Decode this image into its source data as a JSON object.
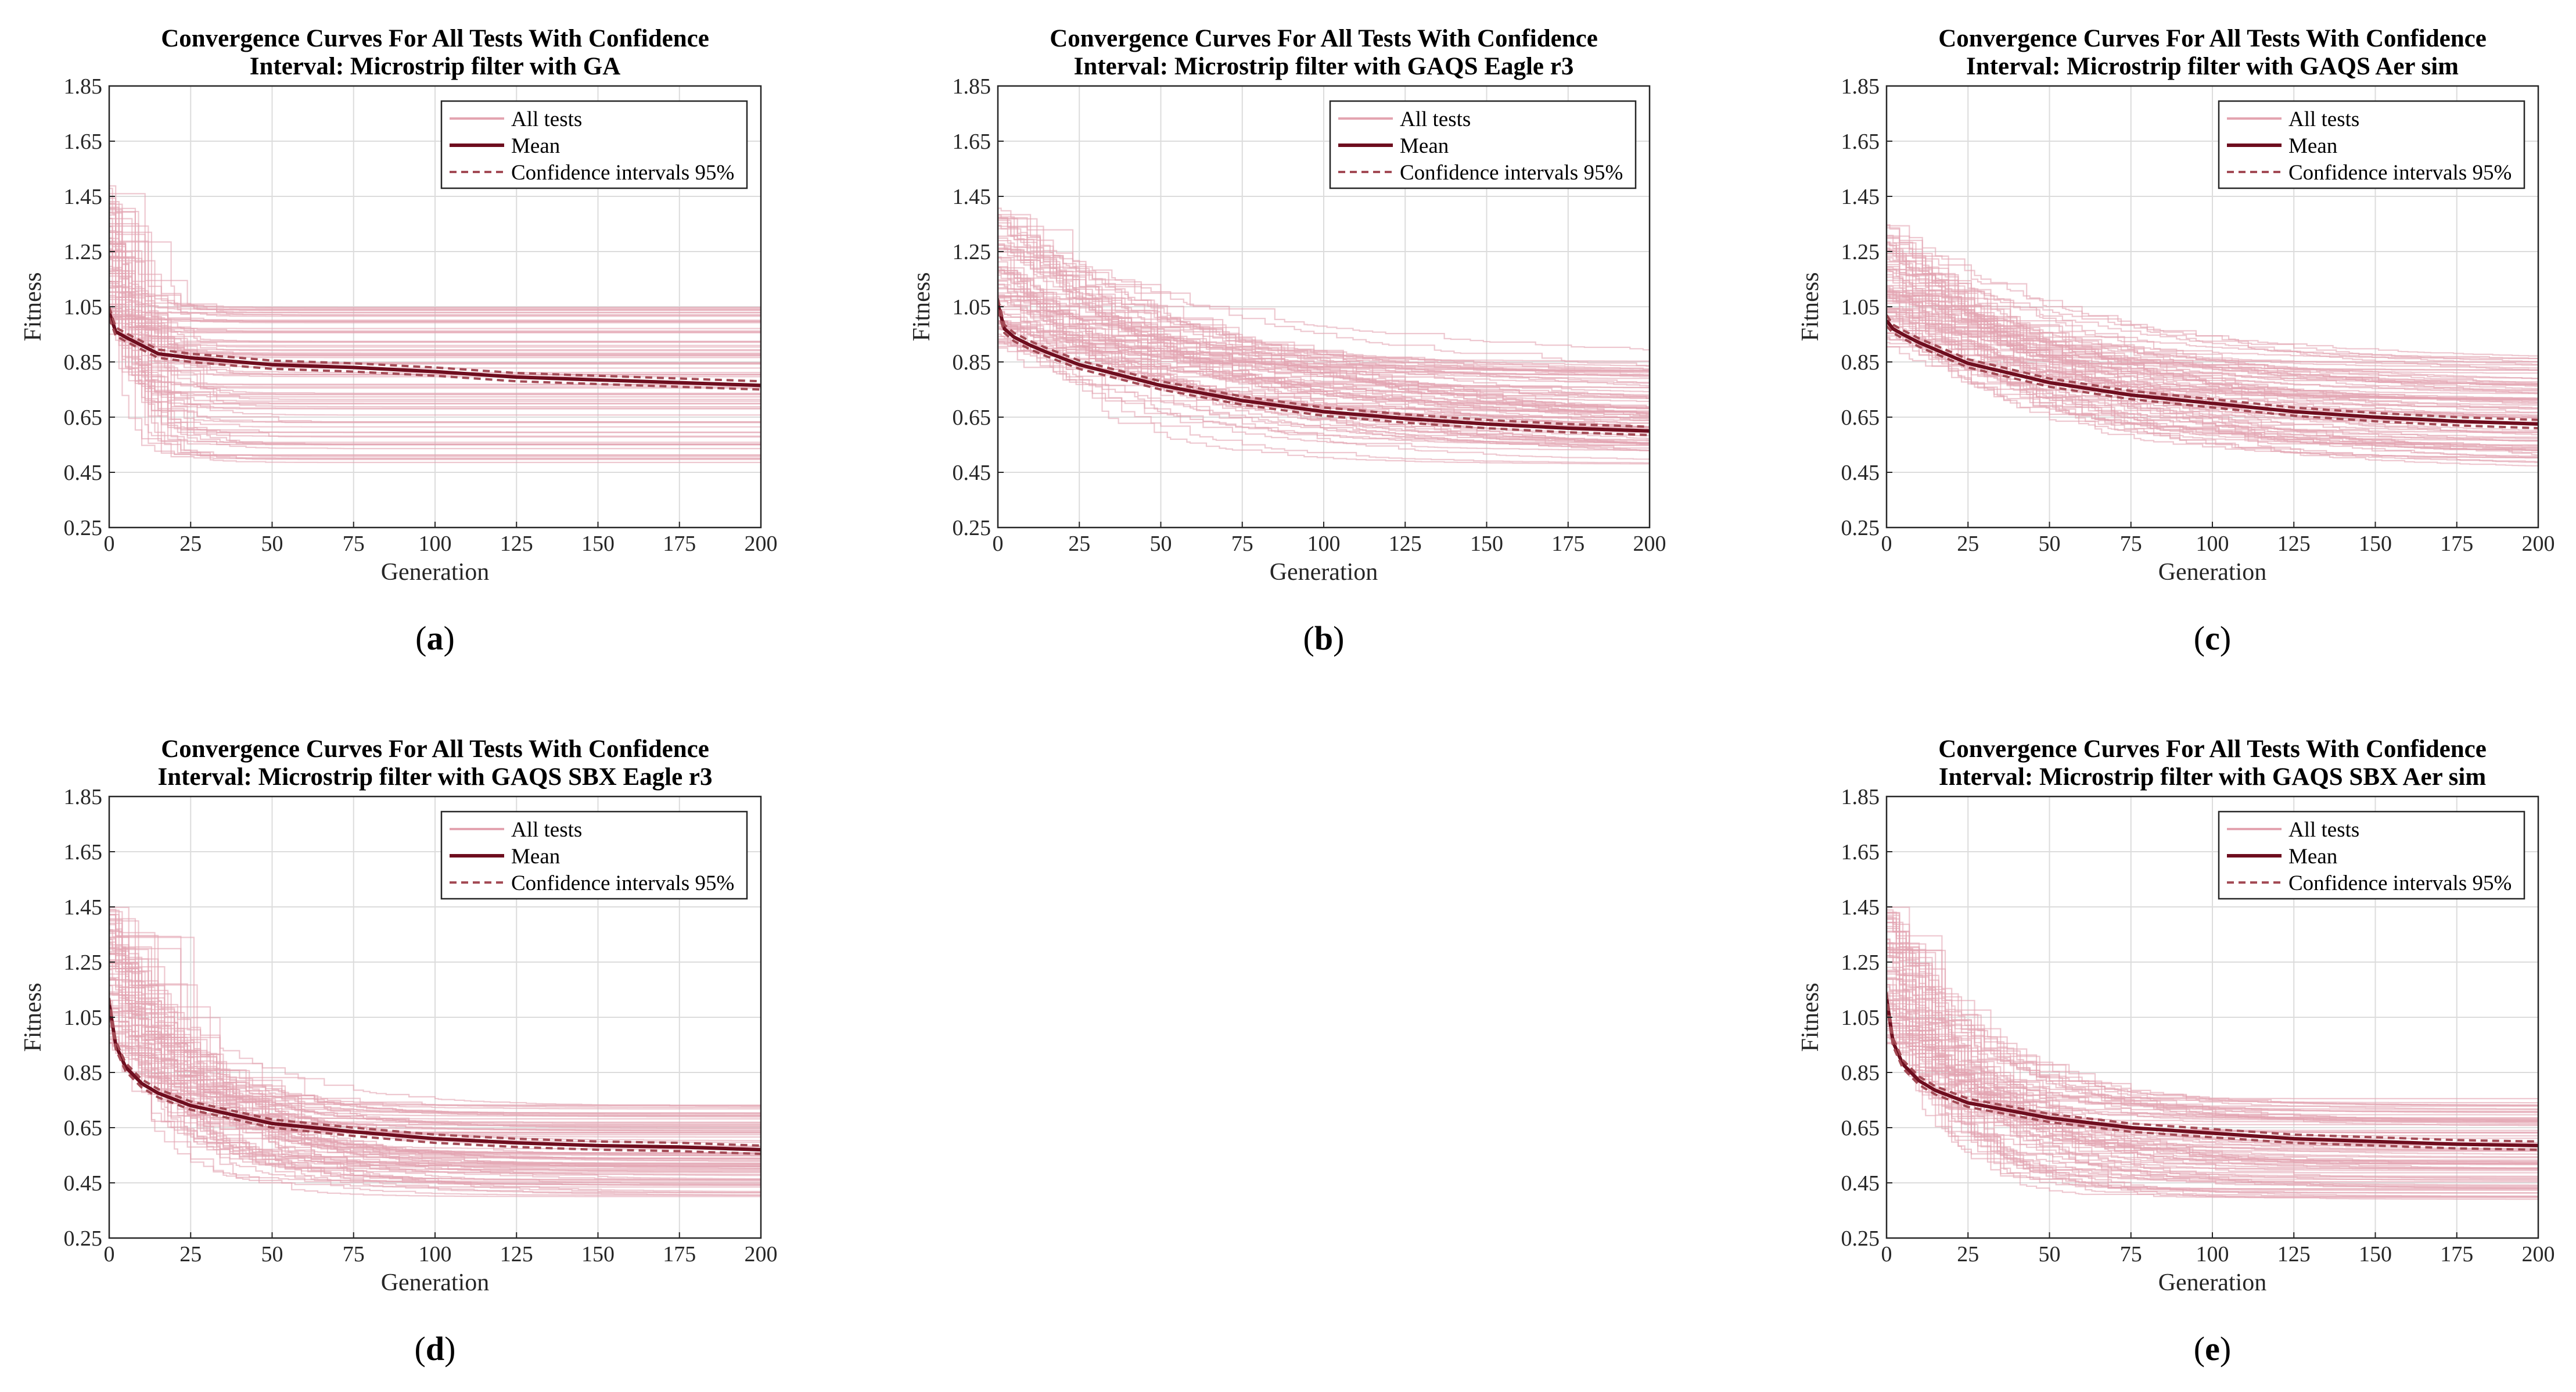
{
  "figure": {
    "legend_labels": [
      "All tests",
      "Mean",
      "Confidence intervals 95%"
    ],
    "colors": {
      "tests": "#e3a4b0",
      "mean": "#6e0d1e",
      "ci": "#a34a55",
      "grid": "#dcdcdc",
      "axis": "#262626"
    }
  },
  "chart_data": [
    {
      "type": "line",
      "panel_label": "(a)",
      "title": "Convergence Curves For All Tests With Confidence Interval: Microstrip filter with GA",
      "title_lines": [
        "Convergence Curves For All Tests With Confidence",
        "Interval: Microstrip filter with GA"
      ],
      "xlabel": "Generation",
      "ylabel": "Fitness",
      "xlim": [
        0,
        200
      ],
      "ylim": [
        0.25,
        1.85
      ],
      "xticks": [
        0,
        25,
        50,
        75,
        100,
        125,
        150,
        175,
        200
      ],
      "yticks": [
        0.25,
        0.45,
        0.65,
        0.85,
        1.05,
        1.25,
        1.45,
        1.65,
        1.85
      ],
      "grid": true,
      "legend_position": "top-right",
      "series": [
        {
          "name": "Mean",
          "style": "solid",
          "x": [
            0,
            2,
            5,
            10,
            15,
            25,
            50,
            75,
            100,
            125,
            150,
            175,
            200
          ],
          "y": [
            1.03,
            0.96,
            0.94,
            0.91,
            0.88,
            0.865,
            0.84,
            0.83,
            0.815,
            0.795,
            0.785,
            0.775,
            0.765
          ]
        },
        {
          "name": "Confidence intervals 95%",
          "style": "dashed",
          "x": [
            0,
            2,
            5,
            10,
            15,
            25,
            50,
            75,
            100,
            125,
            150,
            175,
            200
          ],
          "y": [
            1.05,
            0.975,
            0.955,
            0.925,
            0.895,
            0.88,
            0.855,
            0.845,
            0.83,
            0.81,
            0.8,
            0.79,
            0.78
          ]
        },
        {
          "name": "Confidence intervals 95%",
          "style": "dashed",
          "x": [
            0,
            2,
            5,
            10,
            15,
            25,
            50,
            75,
            100,
            125,
            150,
            175,
            200
          ],
          "y": [
            1.01,
            0.945,
            0.925,
            0.895,
            0.865,
            0.85,
            0.825,
            0.815,
            0.8,
            0.78,
            0.77,
            0.76,
            0.75
          ]
        }
      ],
      "all_tests": {
        "count": 80,
        "start_range": [
          0.95,
          1.5
        ],
        "end_range": [
          0.46,
          1.06
        ],
        "decay": 6
      }
    },
    {
      "type": "line",
      "panel_label": "(b)",
      "title": "Convergence Curves For All Tests With Confidence Interval: Microstrip filter with GAQS Eagle r3",
      "title_lines": [
        "Convergence Curves For All Tests With Confidence",
        "Interval: Microstrip filter with GAQS Eagle r3"
      ],
      "xlabel": "Generation",
      "ylabel": "Fitness",
      "xlim": [
        0,
        200
      ],
      "ylim": [
        0.25,
        1.85
      ],
      "xticks": [
        0,
        25,
        50,
        75,
        100,
        125,
        150,
        175,
        200
      ],
      "yticks": [
        0.25,
        0.45,
        0.65,
        0.85,
        1.05,
        1.25,
        1.45,
        1.65,
        1.85
      ],
      "grid": true,
      "legend_position": "top-right",
      "series": [
        {
          "name": "Mean",
          "style": "solid",
          "x": [
            0,
            2,
            5,
            10,
            15,
            25,
            50,
            75,
            100,
            125,
            150,
            175,
            200
          ],
          "y": [
            1.06,
            0.97,
            0.94,
            0.91,
            0.885,
            0.84,
            0.765,
            0.71,
            0.67,
            0.645,
            0.625,
            0.61,
            0.6
          ]
        },
        {
          "name": "Confidence intervals 95%",
          "style": "dashed",
          "x": [
            0,
            2,
            5,
            10,
            15,
            25,
            50,
            75,
            100,
            125,
            150,
            175,
            200
          ],
          "y": [
            1.08,
            0.985,
            0.955,
            0.925,
            0.9,
            0.855,
            0.78,
            0.725,
            0.685,
            0.66,
            0.64,
            0.625,
            0.615
          ]
        },
        {
          "name": "Confidence intervals 95%",
          "style": "dashed",
          "x": [
            0,
            2,
            5,
            10,
            15,
            25,
            50,
            75,
            100,
            125,
            150,
            175,
            200
          ],
          "y": [
            1.04,
            0.955,
            0.925,
            0.895,
            0.87,
            0.825,
            0.75,
            0.695,
            0.655,
            0.63,
            0.61,
            0.595,
            0.585
          ]
        }
      ],
      "all_tests": {
        "count": 80,
        "start_range": [
          0.9,
          1.42
        ],
        "end_range": [
          0.45,
          0.86
        ],
        "decay": 60
      }
    },
    {
      "type": "line",
      "panel_label": "(c)",
      "title": "Convergence Curves For All Tests With Confidence Interval: Microstrip filter with GAQS Aer sim",
      "title_lines": [
        "Convergence Curves For All Tests With Confidence",
        "Interval: Microstrip filter with GAQS Aer sim"
      ],
      "xlabel": "Generation",
      "ylabel": "Fitness",
      "xlim": [
        0,
        200
      ],
      "ylim": [
        0.25,
        1.85
      ],
      "xticks": [
        0,
        25,
        50,
        75,
        100,
        125,
        150,
        175,
        200
      ],
      "yticks": [
        0.25,
        0.45,
        0.65,
        0.85,
        1.05,
        1.25,
        1.45,
        1.65,
        1.85
      ],
      "grid": true,
      "legend_position": "top-right",
      "series": [
        {
          "name": "Mean",
          "style": "solid",
          "x": [
            0,
            2,
            5,
            10,
            15,
            25,
            50,
            75,
            100,
            125,
            150,
            175,
            200
          ],
          "y": [
            1.0,
            0.97,
            0.95,
            0.92,
            0.895,
            0.845,
            0.775,
            0.73,
            0.7,
            0.67,
            0.65,
            0.635,
            0.625
          ]
        },
        {
          "name": "Confidence intervals 95%",
          "style": "dashed",
          "x": [
            0,
            2,
            5,
            10,
            15,
            25,
            50,
            75,
            100,
            125,
            150,
            175,
            200
          ],
          "y": [
            1.02,
            0.985,
            0.965,
            0.935,
            0.91,
            0.86,
            0.79,
            0.745,
            0.715,
            0.685,
            0.665,
            0.65,
            0.64
          ]
        },
        {
          "name": "Confidence intervals 95%",
          "style": "dashed",
          "x": [
            0,
            2,
            5,
            10,
            15,
            25,
            50,
            75,
            100,
            125,
            150,
            175,
            200
          ],
          "y": [
            0.98,
            0.955,
            0.935,
            0.905,
            0.88,
            0.83,
            0.76,
            0.715,
            0.685,
            0.655,
            0.635,
            0.62,
            0.61
          ]
        }
      ],
      "all_tests": {
        "count": 80,
        "start_range": [
          0.9,
          1.35
        ],
        "end_range": [
          0.46,
          0.86
        ],
        "decay": 55
      }
    },
    {
      "type": "line",
      "panel_label": "(d)",
      "title": "Convergence Curves For All Tests With Confidence Interval: Microstrip filter with GAQS SBX Eagle r3",
      "title_lines": [
        "Convergence Curves For All Tests With Confidence",
        "Interval: Microstrip filter with GAQS SBX Eagle r3"
      ],
      "xlabel": "Generation",
      "ylabel": "Fitness",
      "xlim": [
        0,
        200
      ],
      "ylim": [
        0.25,
        1.85
      ],
      "xticks": [
        0,
        25,
        50,
        75,
        100,
        125,
        150,
        175,
        200
      ],
      "yticks": [
        0.25,
        0.45,
        0.65,
        0.85,
        1.05,
        1.25,
        1.45,
        1.65,
        1.85
      ],
      "grid": true,
      "legend_position": "top-right",
      "series": [
        {
          "name": "Mean",
          "style": "solid",
          "x": [
            0,
            2,
            5,
            10,
            15,
            25,
            50,
            75,
            100,
            125,
            150,
            175,
            200
          ],
          "y": [
            1.1,
            0.95,
            0.87,
            0.81,
            0.775,
            0.73,
            0.665,
            0.635,
            0.61,
            0.595,
            0.585,
            0.58,
            0.57
          ]
        },
        {
          "name": "Confidence intervals 95%",
          "style": "dashed",
          "x": [
            0,
            2,
            5,
            10,
            15,
            25,
            50,
            75,
            100,
            125,
            150,
            175,
            200
          ],
          "y": [
            1.12,
            0.965,
            0.885,
            0.825,
            0.79,
            0.745,
            0.68,
            0.65,
            0.625,
            0.61,
            0.6,
            0.595,
            0.585
          ]
        },
        {
          "name": "Confidence intervals 95%",
          "style": "dashed",
          "x": [
            0,
            2,
            5,
            10,
            15,
            25,
            50,
            75,
            100,
            125,
            150,
            175,
            200
          ],
          "y": [
            1.08,
            0.935,
            0.855,
            0.795,
            0.76,
            0.715,
            0.65,
            0.62,
            0.595,
            0.58,
            0.57,
            0.565,
            0.555
          ]
        }
      ],
      "all_tests": {
        "count": 80,
        "start_range": [
          0.95,
          1.45
        ],
        "end_range": [
          0.4,
          0.74
        ],
        "decay": 22
      }
    },
    {
      "type": "line",
      "panel_label": "(e)",
      "title": "Convergence Curves For All Tests With Confidence Interval: Microstrip filter with GAQS SBX Aer sim",
      "title_lines": [
        "Convergence Curves For All Tests With Confidence",
        "Interval: Microstrip filter with GAQS SBX Aer sim"
      ],
      "xlabel": "Generation",
      "ylabel": "Fitness",
      "xlim": [
        0,
        200
      ],
      "ylim": [
        0.25,
        1.85
      ],
      "xticks": [
        0,
        25,
        50,
        75,
        100,
        125,
        150,
        175,
        200
      ],
      "yticks": [
        0.25,
        0.45,
        0.65,
        0.85,
        1.05,
        1.25,
        1.45,
        1.65,
        1.85
      ],
      "grid": true,
      "legend_position": "top-right",
      "series": [
        {
          "name": "Mean",
          "style": "solid",
          "x": [
            0,
            2,
            5,
            10,
            15,
            25,
            50,
            75,
            100,
            125,
            150,
            175,
            200
          ],
          "y": [
            1.12,
            0.96,
            0.88,
            0.82,
            0.785,
            0.74,
            0.685,
            0.65,
            0.63,
            0.61,
            0.6,
            0.59,
            0.585
          ]
        },
        {
          "name": "Confidence intervals 95%",
          "style": "dashed",
          "x": [
            0,
            2,
            5,
            10,
            15,
            25,
            50,
            75,
            100,
            125,
            150,
            175,
            200
          ],
          "y": [
            1.14,
            0.975,
            0.895,
            0.835,
            0.8,
            0.755,
            0.7,
            0.665,
            0.645,
            0.625,
            0.615,
            0.605,
            0.6
          ]
        },
        {
          "name": "Confidence intervals 95%",
          "style": "dashed",
          "x": [
            0,
            2,
            5,
            10,
            15,
            25,
            50,
            75,
            100,
            125,
            150,
            175,
            200
          ],
          "y": [
            1.1,
            0.945,
            0.865,
            0.805,
            0.77,
            0.725,
            0.67,
            0.635,
            0.615,
            0.595,
            0.585,
            0.575,
            0.57
          ]
        }
      ],
      "all_tests": {
        "count": 80,
        "start_range": [
          0.95,
          1.45
        ],
        "end_range": [
          0.38,
          0.76
        ],
        "decay": 24
      }
    }
  ]
}
